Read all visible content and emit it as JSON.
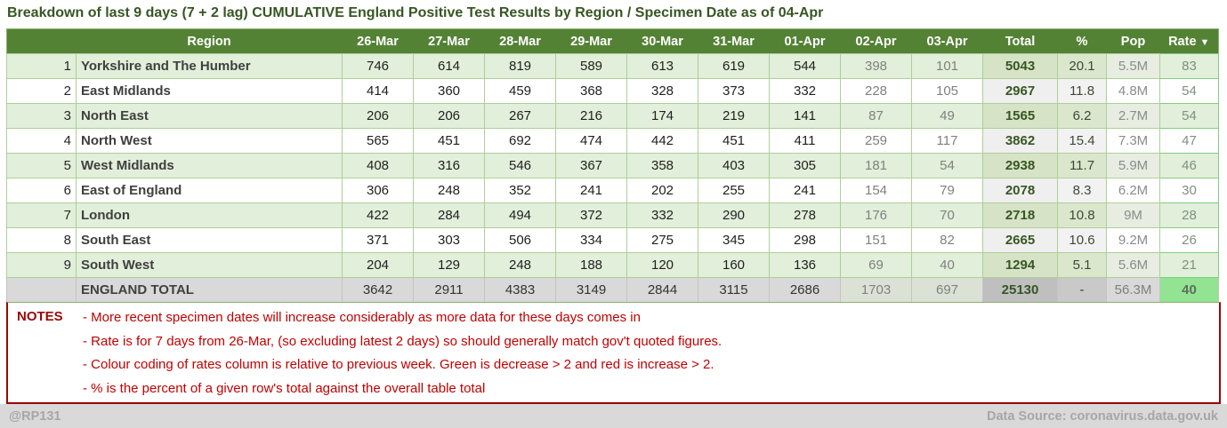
{
  "chart_data": {
    "type": "table",
    "title": "Breakdown of last 9 days (7 + 2 lag) CUMULATIVE England Positive Test Results by Region / Specimen Date as of 04-Apr",
    "headers": [
      "Region",
      "26-Mar",
      "27-Mar",
      "28-Mar",
      "29-Mar",
      "30-Mar",
      "31-Mar",
      "01-Apr",
      "02-Apr",
      "03-Apr",
      "Total",
      "%",
      "Pop"
    ],
    "rate_header": {
      "label": "Rate",
      "sort_icon": "▼"
    },
    "lag_value_count": 2,
    "rows": [
      {
        "num": "1",
        "region": "Yorkshire and The Humber",
        "values": [
          746,
          614,
          819,
          589,
          613,
          619,
          544,
          398,
          101
        ],
        "total": "5043",
        "pct": "20.1",
        "pop": "5.5M",
        "rate": "83"
      },
      {
        "num": "2",
        "region": "East Midlands",
        "values": [
          414,
          360,
          459,
          368,
          328,
          373,
          332,
          228,
          105
        ],
        "total": "2967",
        "pct": "11.8",
        "pop": "4.8M",
        "rate": "54"
      },
      {
        "num": "3",
        "region": "North East",
        "values": [
          206,
          206,
          267,
          216,
          174,
          219,
          141,
          87,
          49
        ],
        "total": "1565",
        "pct": "6.2",
        "pop": "2.7M",
        "rate": "54"
      },
      {
        "num": "4",
        "region": "North West",
        "values": [
          565,
          451,
          692,
          474,
          442,
          451,
          411,
          259,
          117
        ],
        "total": "3862",
        "pct": "15.4",
        "pop": "7.3M",
        "rate": "47"
      },
      {
        "num": "5",
        "region": "West Midlands",
        "values": [
          408,
          316,
          546,
          367,
          358,
          403,
          305,
          181,
          54
        ],
        "total": "2938",
        "pct": "11.7",
        "pop": "5.9M",
        "rate": "46"
      },
      {
        "num": "6",
        "region": "East of England",
        "values": [
          306,
          248,
          352,
          241,
          202,
          255,
          241,
          154,
          79
        ],
        "total": "2078",
        "pct": "8.3",
        "pop": "6.2M",
        "rate": "30"
      },
      {
        "num": "7",
        "region": "London",
        "values": [
          422,
          284,
          494,
          372,
          332,
          290,
          278,
          176,
          70
        ],
        "total": "2718",
        "pct": "10.8",
        "pop": "9M",
        "rate": "28"
      },
      {
        "num": "8",
        "region": "South East",
        "values": [
          371,
          303,
          506,
          334,
          275,
          345,
          298,
          151,
          82
        ],
        "total": "2665",
        "pct": "10.6",
        "pop": "9.2M",
        "rate": "26"
      },
      {
        "num": "9",
        "region": "South West",
        "values": [
          204,
          129,
          248,
          188,
          120,
          160,
          136,
          69,
          40
        ],
        "total": "1294",
        "pct": "5.1",
        "pop": "5.6M",
        "rate": "21"
      }
    ],
    "total_row": {
      "label": "ENGLAND TOTAL",
      "values": [
        3642,
        2911,
        4383,
        3149,
        2844,
        3115,
        2686,
        1703,
        697
      ],
      "total": "25130",
      "pct": "-",
      "pop": "56.3M",
      "rate": "40"
    }
  },
  "notes": {
    "label": "NOTES",
    "lines": [
      "- More recent specimen dates will increase considerably as more data for these days comes in",
      "- Rate is for 7 days from 26-Mar, (so excluding latest 2 days) so should generally match gov't quoted figures.",
      "- Colour coding of rates column is relative to previous week. Green is decrease > 2 and red is increase > 2.",
      "- % is the percent of a given row's total against the overall table total"
    ]
  },
  "footer": {
    "handle": "@RP131",
    "source": "Data Source: coronavirus.data.gov.uk"
  },
  "colors": {
    "header_green": "#548235",
    "title_green": "#375623",
    "row_green": "#e2efda",
    "rate_green": "#92e492",
    "total_row_gray": "#d9d9d9",
    "note_red": "#c00000",
    "footer_gray": "#d9d9d9"
  }
}
